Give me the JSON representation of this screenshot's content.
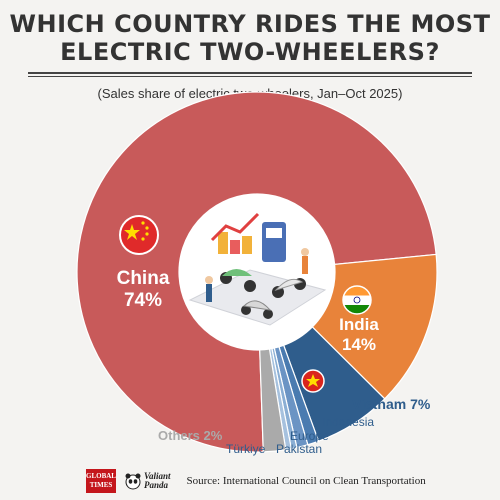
{
  "header": {
    "title_line1": "WHICH COUNTRY RIDES THE MOST",
    "title_line2": "ELECTRIC TWO-WHEELERS?",
    "subtitle": "(Sales share of electric two-wheelers, Jan–Oct 2025)"
  },
  "chart_data": {
    "type": "pie",
    "subtitle": "(Sales share of electric two-wheelers, Jan–Oct 2025)",
    "categories": [
      "China",
      "India",
      "Vietnam",
      "Indonesia",
      "Europe",
      "Pakistan",
      "Türkiye",
      "Others"
    ],
    "labels": [
      "China 74%",
      "India 14%",
      "Vietnam 7%",
      "Indonesia",
      "Europe",
      "Pakistan",
      "Türkiye",
      "Others 2%"
    ],
    "values": [
      74,
      14,
      7,
      1,
      1,
      0.5,
      0.5,
      2
    ],
    "colors": [
      "#c85a5a",
      "#e8833a",
      "#2f5d8c",
      "#4a7bb0",
      "#6b94c4",
      "#8aaed4",
      "#a6c1de",
      "#aaaaaa"
    ]
  },
  "footer": {
    "logo1_line1": "GLOBAL",
    "logo1_line2": "TIMES",
    "logo2_line1": "Valiant",
    "logo2_line2": "Panda",
    "source": "Source: International Council on Clean Transportation"
  }
}
